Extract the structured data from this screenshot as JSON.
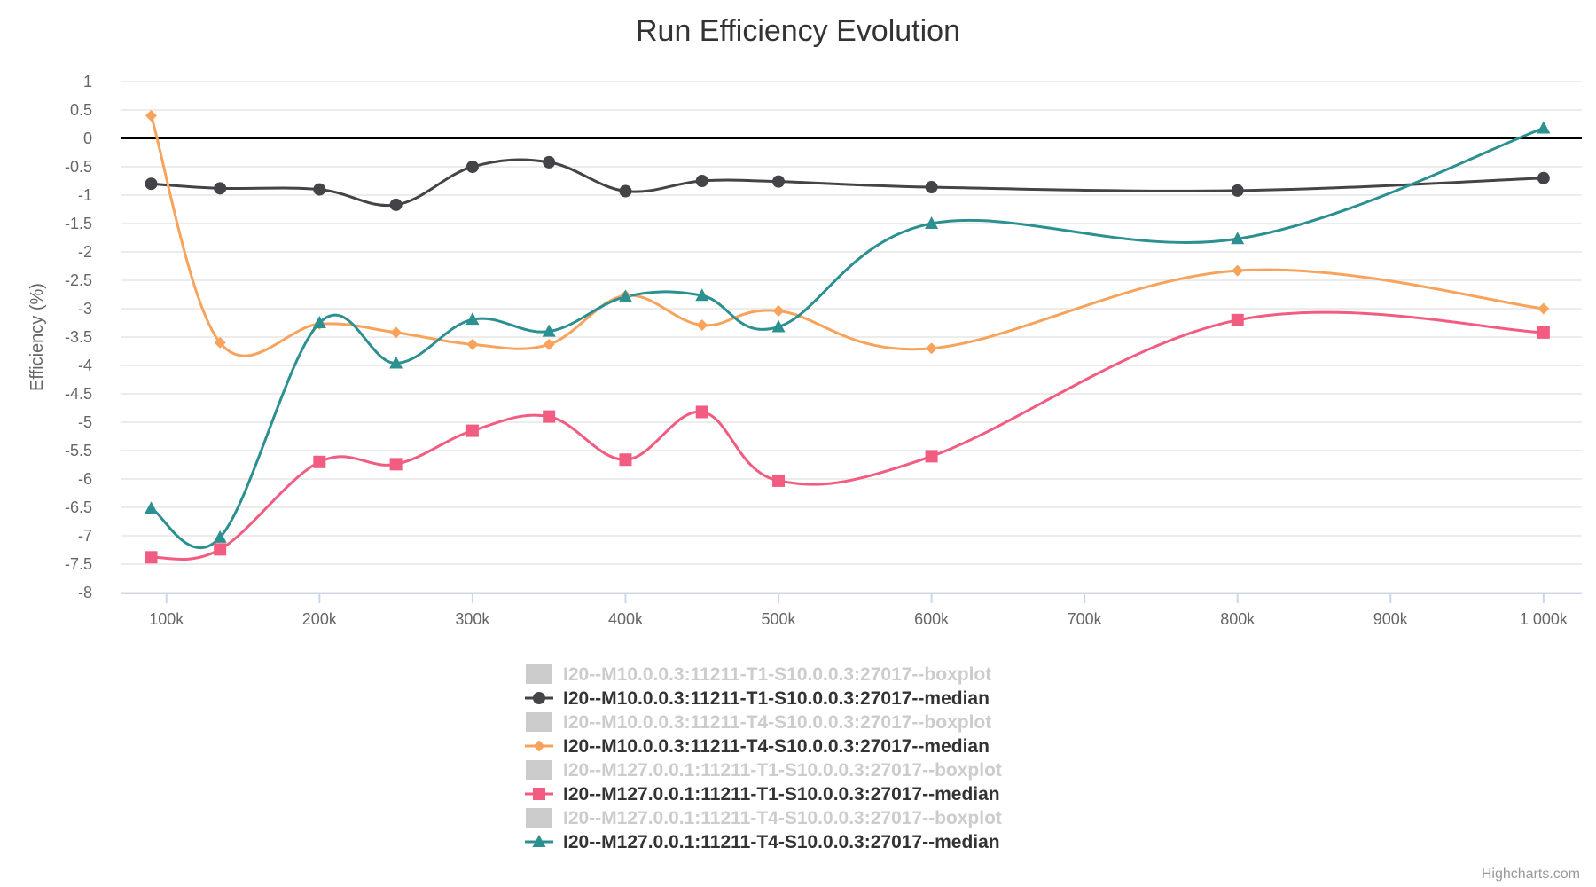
{
  "chart_data": {
    "type": "line",
    "title": "Run Efficiency Evolution",
    "xlabel": "",
    "ylabel": "Efficiency (%)",
    "xlim": [
      70000,
      1025000
    ],
    "ylim": [
      -8,
      1
    ],
    "x_ticks": [
      100000,
      200000,
      300000,
      400000,
      500000,
      600000,
      700000,
      800000,
      900000,
      1000000
    ],
    "x_tick_labels": [
      "100k",
      "200k",
      "300k",
      "400k",
      "500k",
      "600k",
      "700k",
      "800k",
      "900k",
      "1 000k"
    ],
    "y_ticks": [
      1,
      0.5,
      0,
      -0.5,
      -1,
      -1.5,
      -2,
      -2.5,
      -3,
      -3.5,
      -4,
      -4.5,
      -5,
      -5.5,
      -6,
      -6.5,
      -7,
      -7.5,
      -8
    ],
    "y_tick_labels": [
      "1",
      "0.5",
      "0",
      "-0.5",
      "-1",
      "-1.5",
      "-2",
      "-2.5",
      "-3",
      "-3.5",
      "-4",
      "-4.5",
      "-5",
      "-5.5",
      "-6",
      "-6.5",
      "-7",
      "-7.5",
      "-8"
    ],
    "grid": true,
    "zero_line": true,
    "legend_position": "bottom-center",
    "x": [
      90000,
      135000,
      200000,
      250000,
      300000,
      350000,
      400000,
      450000,
      500000,
      600000,
      800000,
      1000000
    ],
    "series": [
      {
        "name": "I20--M10.0.0.3:11211-T1-S10.0.0.3:27017--median",
        "marker": "circle",
        "color": "#434348",
        "visible": true,
        "values": [
          -0.8,
          -0.88,
          -0.9,
          -1.17,
          -0.5,
          -0.42,
          -0.93,
          -0.75,
          -0.76,
          -0.86,
          -0.92,
          -0.7
        ]
      },
      {
        "name": "I20--M10.0.0.3:11211-T4-S10.0.0.3:27017--median",
        "marker": "diamond",
        "color": "#f7a35c",
        "visible": true,
        "values": [
          0.4,
          -3.6,
          -3.27,
          -3.42,
          -3.63,
          -3.63,
          -2.77,
          -3.29,
          -3.04,
          -3.7,
          -2.33,
          -3.0
        ]
      },
      {
        "name": "I20--M127.0.0.1:11211-T1-S10.0.0.3:27017--median",
        "marker": "square",
        "color": "#f15c80",
        "visible": true,
        "values": [
          -7.38,
          -7.24,
          -5.7,
          -5.74,
          -5.15,
          -4.9,
          -5.66,
          -4.82,
          -6.03,
          -5.6,
          -3.2,
          -3.42
        ]
      },
      {
        "name": "I20--M127.0.0.1:11211-T4-S10.0.0.3:27017--median",
        "marker": "triangle",
        "color": "#2b908f",
        "visible": true,
        "values": [
          -6.52,
          -7.03,
          -3.25,
          -3.96,
          -3.19,
          -3.4,
          -2.79,
          -2.77,
          -3.32,
          -1.5,
          -1.77,
          0.18
        ]
      }
    ],
    "legend": [
      {
        "label": "I20--M10.0.0.3:11211-T1-S10.0.0.3:27017--boxplot",
        "symbol": "box",
        "color": "#cccccc",
        "visible": false
      },
      {
        "label": "I20--M10.0.0.3:11211-T1-S10.0.0.3:27017--median",
        "symbol": "circle",
        "color": "#434348",
        "visible": true
      },
      {
        "label": "I20--M10.0.0.3:11211-T4-S10.0.0.3:27017--boxplot",
        "symbol": "box",
        "color": "#cccccc",
        "visible": false
      },
      {
        "label": "I20--M10.0.0.3:11211-T4-S10.0.0.3:27017--median",
        "symbol": "diamond",
        "color": "#f7a35c",
        "visible": true
      },
      {
        "label": "I20--M127.0.0.1:11211-T1-S10.0.0.3:27017--boxplot",
        "symbol": "box",
        "color": "#cccccc",
        "visible": false
      },
      {
        "label": "I20--M127.0.0.1:11211-T1-S10.0.0.3:27017--median",
        "symbol": "square",
        "color": "#f15c80",
        "visible": true
      },
      {
        "label": "I20--M127.0.0.1:11211-T4-S10.0.0.3:27017--boxplot",
        "symbol": "box",
        "color": "#cccccc",
        "visible": false
      },
      {
        "label": "I20--M127.0.0.1:11211-T4-S10.0.0.3:27017--median",
        "symbol": "triangle",
        "color": "#2b908f",
        "visible": true
      }
    ],
    "colors": {
      "grid": "#e6e6e6",
      "axis": "#ccd6eb",
      "zero_line": "#000000",
      "legend_active_text": "#333333",
      "legend_hidden_text": "#cccccc"
    }
  },
  "credits": "Highcharts.com"
}
